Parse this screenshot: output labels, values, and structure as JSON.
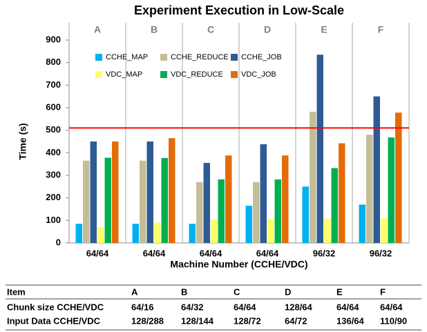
{
  "chart_data": {
    "type": "bar",
    "title": "Experiment Execution in Low-Scale",
    "groups": [
      "A",
      "B",
      "C",
      "D",
      "E",
      "F"
    ],
    "categories": [
      "64/64",
      "64/64",
      "64/64",
      "64/64",
      "96/32",
      "96/32"
    ],
    "x_label": "Machine Number (CCHE/VDC)",
    "y_label": "Time (s)",
    "ylim": [
      0,
      900
    ],
    "yticks": [
      0,
      100,
      200,
      300,
      400,
      500,
      600,
      700,
      800,
      900
    ],
    "reference_line": 510,
    "reference_color": "#ff0000",
    "series": [
      {
        "name": "CCHE_MAP",
        "color": "#00b0f0",
        "values": [
          85,
          85,
          85,
          165,
          250,
          170
        ]
      },
      {
        "name": "CCHE_REDUCE",
        "color": "#c4bd97",
        "values": [
          365,
          365,
          270,
          270,
          582,
          480
        ]
      },
      {
        "name": "CCHE_JOB",
        "color": "#2e5b94",
        "values": [
          450,
          450,
          355,
          438,
          835,
          650
        ]
      },
      {
        "name": "VDC_MAP",
        "color": "#ffff66",
        "values": [
          70,
          90,
          105,
          105,
          108,
          110
        ]
      },
      {
        "name": "VDC_REDUCE",
        "color": "#00b050",
        "values": [
          378,
          377,
          282,
          282,
          332,
          468
        ]
      },
      {
        "name": "VDC_JOB",
        "color": "#e36c09",
        "values": [
          450,
          465,
          388,
          388,
          442,
          578
        ]
      }
    ]
  },
  "table": {
    "header": [
      "Item",
      "A",
      "B",
      "C",
      "D",
      "E",
      "F"
    ],
    "rows": [
      [
        "Chunk size CCHE/VDC",
        "64/16",
        "64/32",
        "64/64",
        "128/64",
        "64/64",
        "64/64"
      ],
      [
        "Input Data CCHE/VDC",
        "128/288",
        "128/144",
        "128/72",
        "64/72",
        "136/64",
        "110/90"
      ]
    ]
  }
}
